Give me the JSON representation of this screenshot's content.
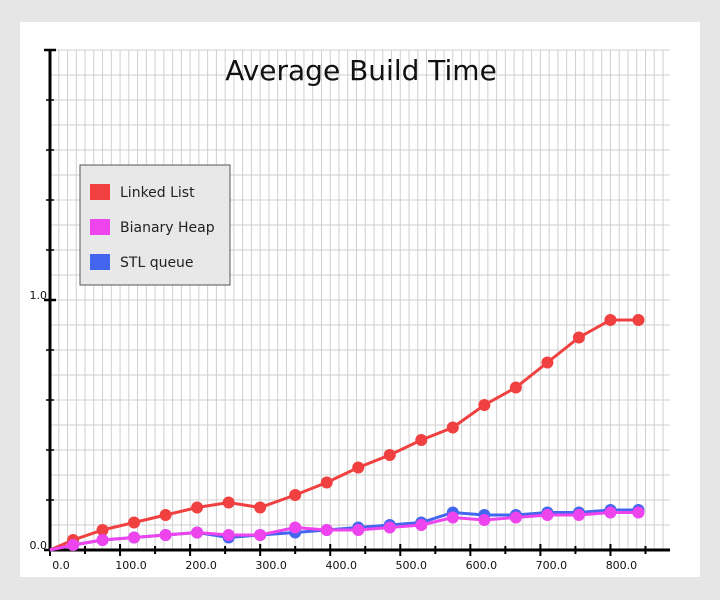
{
  "chart_data": {
    "type": "line",
    "title": "Average Build Time",
    "xlabel": "",
    "ylabel": "",
    "xlim": [
      0,
      885
    ],
    "ylim": [
      0,
      2.0
    ],
    "x_ticks": [
      "0.0",
      "100.0",
      "200.0",
      "300.0",
      "400.0",
      "500.0",
      "600.0",
      "700.0",
      "800.0"
    ],
    "y_tick_labels": [
      "0.0",
      "1.0"
    ],
    "grid": true,
    "legend_position": "top-left",
    "x": [
      0,
      33,
      75,
      120,
      165,
      210,
      255,
      300,
      350,
      395,
      440,
      485,
      530,
      575,
      620,
      665,
      710,
      755,
      800,
      840
    ],
    "series": [
      {
        "name": "Linked List",
        "color": "#f04040",
        "values": [
          0.0,
          0.04,
          0.08,
          0.11,
          0.14,
          0.17,
          0.19,
          0.17,
          0.22,
          0.27,
          0.33,
          0.38,
          0.44,
          0.49,
          0.58,
          0.65,
          0.75,
          0.85,
          0.92,
          0.92
        ]
      },
      {
        "name": "Bianary Heap",
        "color": "#ee44ee",
        "values": [
          0.0,
          0.02,
          0.04,
          0.05,
          0.06,
          0.07,
          0.06,
          0.06,
          0.09,
          0.08,
          0.08,
          0.09,
          0.1,
          0.13,
          0.12,
          0.13,
          0.14,
          0.14,
          0.15,
          0.15
        ]
      },
      {
        "name": "STL queue",
        "color": "#4466ee",
        "values": [
          0.0,
          0.02,
          0.04,
          0.05,
          0.06,
          0.07,
          0.05,
          0.06,
          0.07,
          0.08,
          0.09,
          0.1,
          0.11,
          0.15,
          0.14,
          0.14,
          0.15,
          0.15,
          0.16,
          0.16
        ]
      }
    ]
  }
}
